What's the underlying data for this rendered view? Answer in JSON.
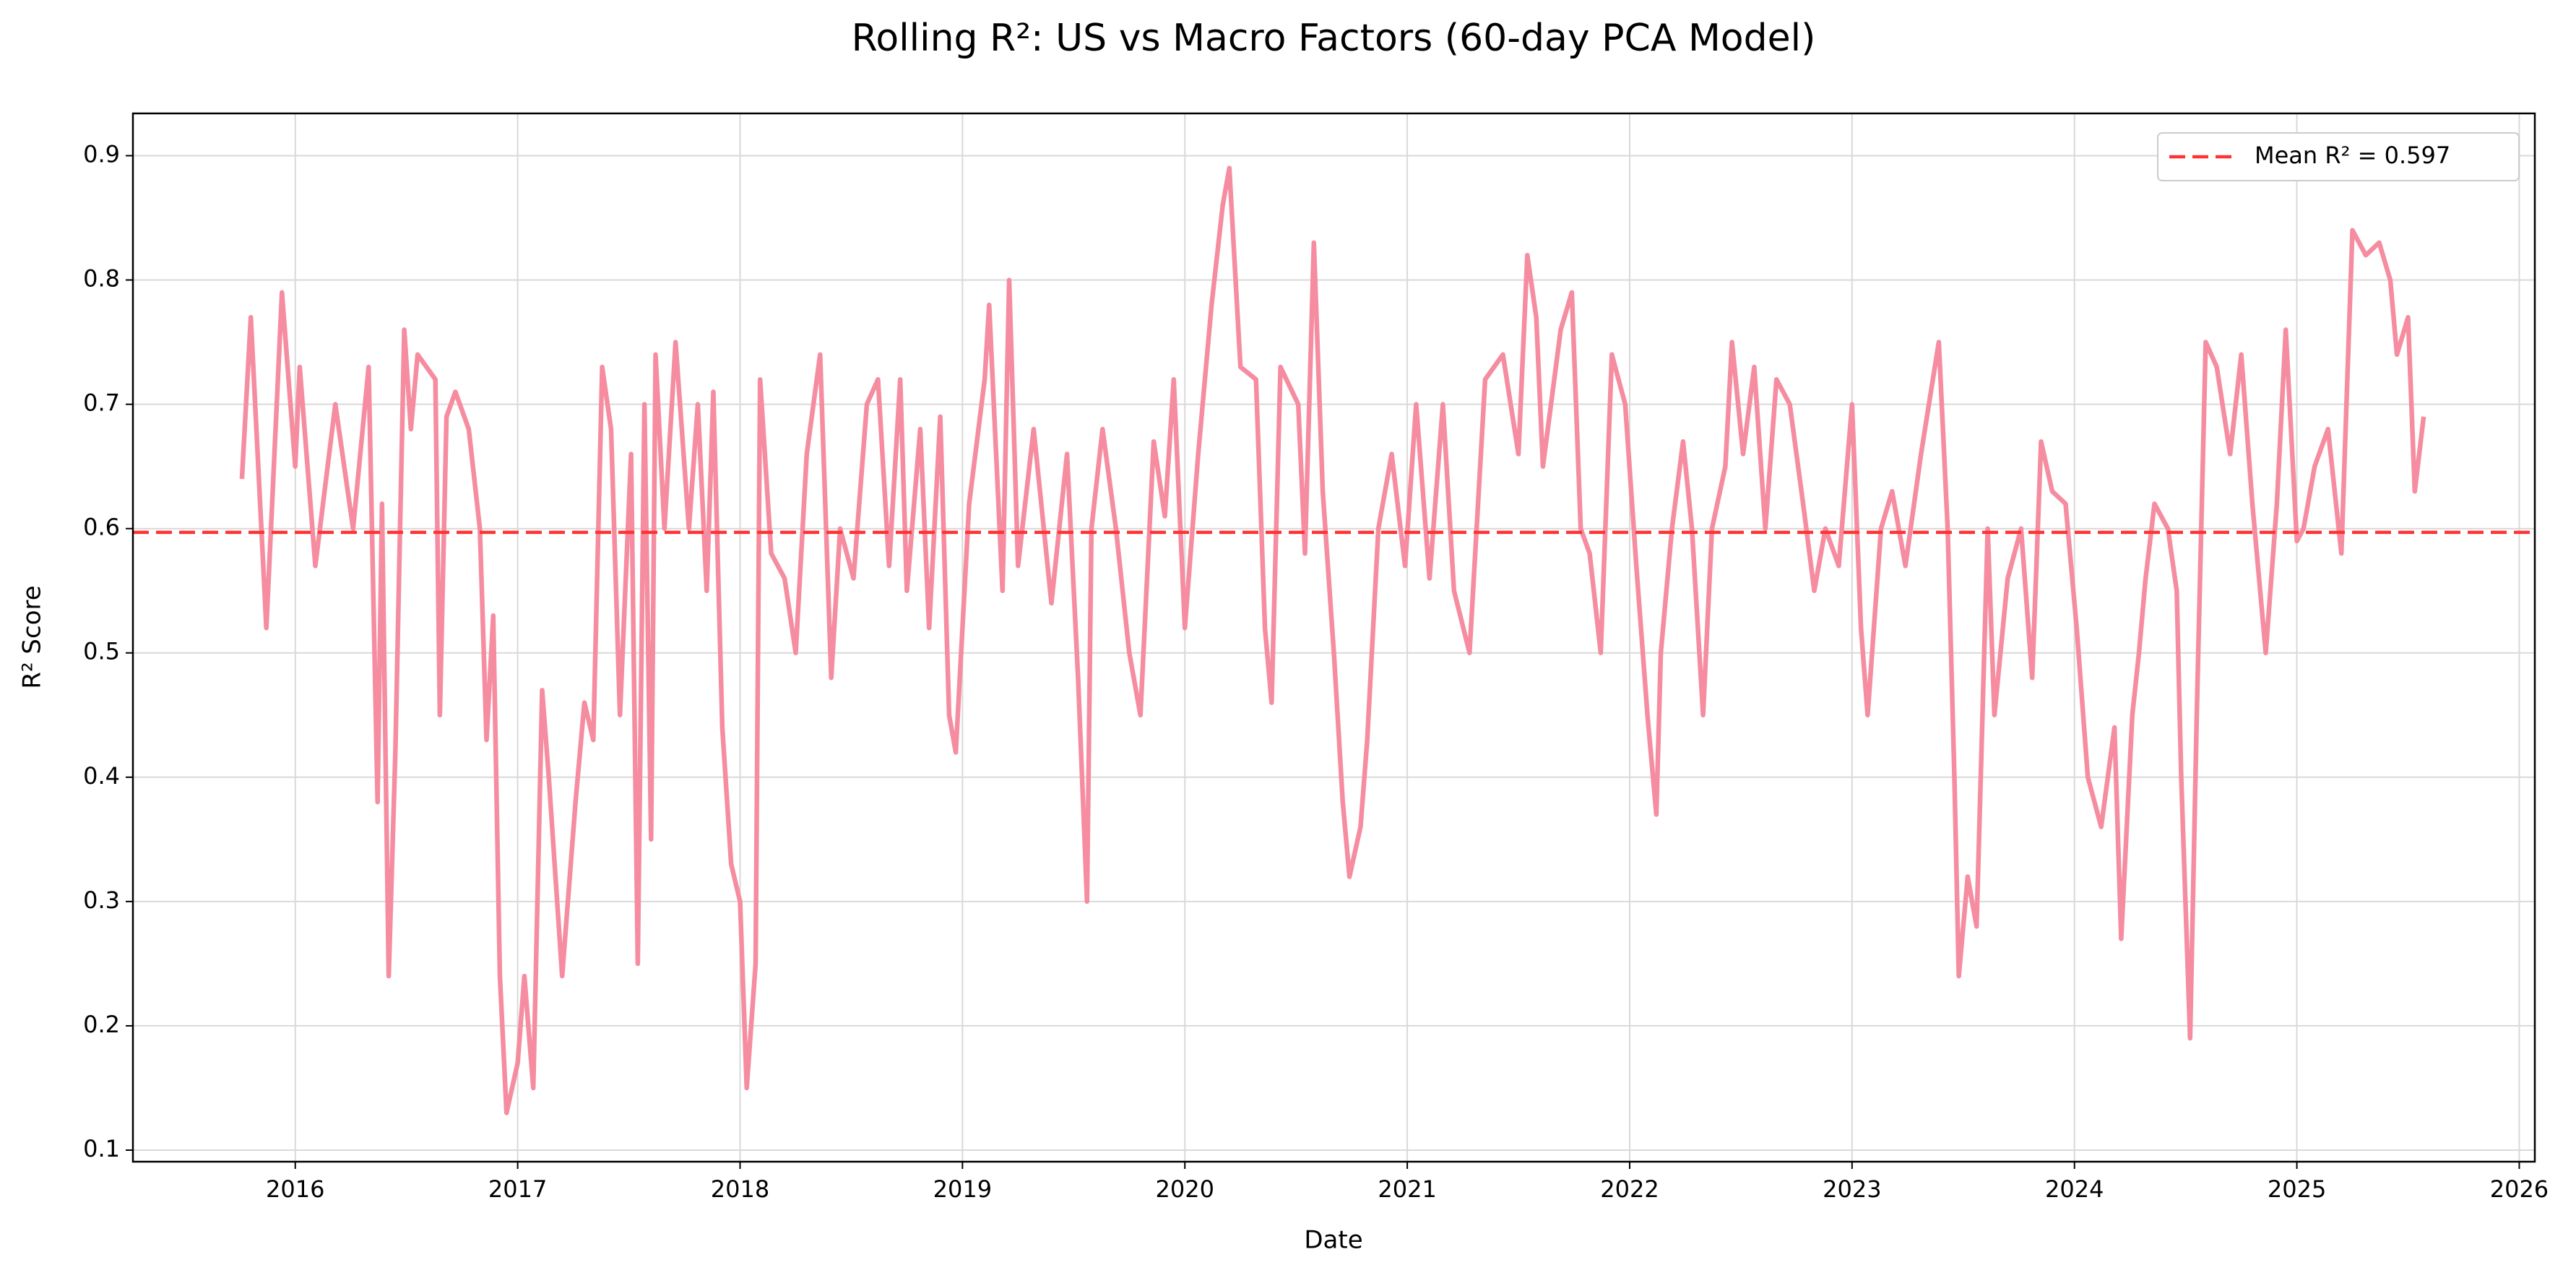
{
  "chart_data": {
    "type": "line",
    "title": "Rolling R²: US vs Macro Factors (60-day PCA Model)",
    "xlabel": "Date",
    "ylabel": "R² Score",
    "x": [
      2015.76,
      2015.8,
      2015.87,
      2015.94,
      2016.0,
      2016.02,
      2016.09,
      2016.18,
      2016.26,
      2016.33,
      2016.37,
      2016.39,
      2016.42,
      2016.45,
      2016.49,
      2016.52,
      2016.55,
      2016.63,
      2016.65,
      2016.68,
      2016.72,
      2016.78,
      2016.83,
      2016.86,
      2016.89,
      2016.92,
      2016.95,
      2017.0,
      2017.03,
      2017.07,
      2017.11,
      2017.14,
      2017.2,
      2017.26,
      2017.3,
      2017.34,
      2017.38,
      2017.42,
      2017.46,
      2017.51,
      2017.54,
      2017.57,
      2017.6,
      2017.62,
      2017.66,
      2017.71,
      2017.77,
      2017.81,
      2017.85,
      2017.88,
      2017.92,
      2017.96,
      2018.0,
      2018.03,
      2018.07,
      2018.09,
      2018.14,
      2018.2,
      2018.25,
      2018.3,
      2018.36,
      2018.41,
      2018.45,
      2018.51,
      2018.57,
      2018.62,
      2018.67,
      2018.72,
      2018.75,
      2018.81,
      2018.85,
      2018.9,
      2018.94,
      2018.97,
      2019.03,
      2019.1,
      2019.12,
      2019.18,
      2019.21,
      2019.25,
      2019.32,
      2019.4,
      2019.47,
      2019.52,
      2019.56,
      2019.58,
      2019.63,
      2019.69,
      2019.75,
      2019.8,
      2019.86,
      2019.91,
      2019.95,
      2020.0,
      2020.06,
      2020.12,
      2020.17,
      2020.2,
      2020.25,
      2020.32,
      2020.36,
      2020.39,
      2020.43,
      2020.51,
      2020.54,
      2020.58,
      2020.62,
      2020.67,
      2020.71,
      2020.74,
      2020.79,
      2020.82,
      2020.87,
      2020.93,
      2020.99,
      2021.04,
      2021.1,
      2021.16,
      2021.21,
      2021.28,
      2021.35,
      2021.43,
      2021.5,
      2021.54,
      2021.58,
      2021.61,
      2021.69,
      2021.74,
      2021.78,
      2021.82,
      2021.87,
      2021.92,
      2021.98,
      2022.03,
      2022.08,
      2022.12,
      2022.14,
      2022.19,
      2022.24,
      2022.28,
      2022.33,
      2022.37,
      2022.43,
      2022.46,
      2022.51,
      2022.56,
      2022.61,
      2022.66,
      2022.72,
      2022.78,
      2022.83,
      2022.88,
      2022.94,
      2023.0,
      2023.04,
      2023.07,
      2023.13,
      2023.18,
      2023.24,
      2023.31,
      2023.39,
      2023.43,
      2023.46,
      2023.48,
      2023.52,
      2023.56,
      2023.61,
      2023.64,
      2023.7,
      2023.76,
      2023.81,
      2023.85,
      2023.9,
      2023.96,
      2024.01,
      2024.06,
      2024.12,
      2024.18,
      2024.21,
      2024.26,
      2024.29,
      2024.32,
      2024.36,
      2024.42,
      2024.46,
      2024.48,
      2024.52,
      2024.55,
      2024.59,
      2024.64,
      2024.7,
      2024.75,
      2024.8,
      2024.86,
      2024.91,
      2024.95,
      2025.0,
      2025.03,
      2025.08,
      2025.14,
      2025.2,
      2025.25,
      2025.31,
      2025.37,
      2025.42,
      2025.45,
      2025.5,
      2025.53,
      2025.57
    ],
    "series": [
      {
        "color": "#f58ca0",
        "values": [
          0.64,
          0.77,
          0.52,
          0.79,
          0.65,
          0.73,
          0.57,
          0.7,
          0.6,
          0.73,
          0.38,
          0.62,
          0.24,
          0.42,
          0.76,
          0.68,
          0.74,
          0.72,
          0.45,
          0.69,
          0.71,
          0.68,
          0.6,
          0.43,
          0.53,
          0.24,
          0.13,
          0.17,
          0.24,
          0.15,
          0.47,
          0.4,
          0.24,
          0.38,
          0.46,
          0.43,
          0.73,
          0.68,
          0.45,
          0.66,
          0.25,
          0.7,
          0.35,
          0.74,
          0.6,
          0.75,
          0.6,
          0.7,
          0.55,
          0.71,
          0.44,
          0.33,
          0.3,
          0.15,
          0.25,
          0.72,
          0.58,
          0.56,
          0.5,
          0.66,
          0.74,
          0.48,
          0.6,
          0.56,
          0.7,
          0.72,
          0.57,
          0.72,
          0.55,
          0.68,
          0.52,
          0.69,
          0.45,
          0.42,
          0.62,
          0.72,
          0.78,
          0.55,
          0.8,
          0.57,
          0.68,
          0.54,
          0.66,
          0.48,
          0.3,
          0.6,
          0.68,
          0.6,
          0.5,
          0.45,
          0.67,
          0.61,
          0.72,
          0.52,
          0.66,
          0.78,
          0.86,
          0.89,
          0.73,
          0.72,
          0.52,
          0.46,
          0.73,
          0.7,
          0.58,
          0.83,
          0.63,
          0.5,
          0.38,
          0.32,
          0.36,
          0.43,
          0.6,
          0.66,
          0.57,
          0.7,
          0.56,
          0.7,
          0.55,
          0.5,
          0.72,
          0.74,
          0.66,
          0.82,
          0.77,
          0.65,
          0.76,
          0.79,
          0.6,
          0.58,
          0.5,
          0.74,
          0.7,
          0.57,
          0.45,
          0.37,
          0.5,
          0.6,
          0.67,
          0.6,
          0.45,
          0.6,
          0.65,
          0.75,
          0.66,
          0.73,
          0.6,
          0.72,
          0.7,
          0.62,
          0.55,
          0.6,
          0.57,
          0.7,
          0.52,
          0.45,
          0.6,
          0.63,
          0.57,
          0.66,
          0.75,
          0.6,
          0.4,
          0.24,
          0.32,
          0.28,
          0.6,
          0.45,
          0.56,
          0.6,
          0.48,
          0.67,
          0.63,
          0.62,
          0.52,
          0.4,
          0.36,
          0.44,
          0.27,
          0.45,
          0.5,
          0.56,
          0.62,
          0.6,
          0.55,
          0.4,
          0.19,
          0.45,
          0.75,
          0.73,
          0.66,
          0.74,
          0.62,
          0.5,
          0.62,
          0.76,
          0.59,
          0.6,
          0.65,
          0.68,
          0.58,
          0.84,
          0.82,
          0.83,
          0.8,
          0.74,
          0.77,
          0.63,
          0.69
        ]
      }
    ],
    "mean_line": {
      "value": 0.597,
      "label": "Mean R² = 0.597",
      "color": "#ff3333",
      "style": "dashed"
    },
    "legend": "upper right",
    "xlim": [
      2015.27,
      2026.07
    ],
    "ylim": [
      0.0907,
      0.934
    ],
    "xticks": [
      2016,
      2017,
      2018,
      2019,
      2020,
      2021,
      2022,
      2023,
      2024,
      2025,
      2026
    ],
    "yticks": [
      0.1,
      0.2,
      0.3,
      0.4,
      0.5,
      0.6,
      0.7,
      0.8,
      0.9
    ],
    "grid": true
  }
}
